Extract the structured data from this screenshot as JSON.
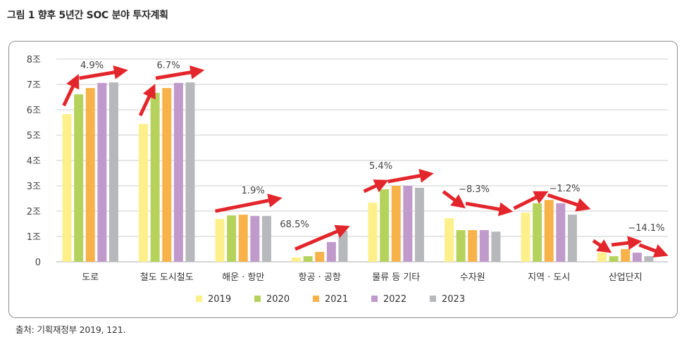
{
  "figure": {
    "title": "그림 1  향후 5년간 SOC 분야 투자계획",
    "source": "출처: 기획재정부 2019, 121."
  },
  "chart_data": {
    "type": "bar",
    "title": "향후 5년간 SOC 분야 투자계획",
    "xlabel": "",
    "ylabel": "",
    "ylim": [
      0,
      8
    ],
    "yticks": [
      {
        "value": 0,
        "label": "0"
      },
      {
        "value": 1,
        "label": "1조"
      },
      {
        "value": 2,
        "label": "2조"
      },
      {
        "value": 3,
        "label": "3조"
      },
      {
        "value": 4,
        "label": "4조"
      },
      {
        "value": 5,
        "label": "5조"
      },
      {
        "value": 6,
        "label": "6조"
      },
      {
        "value": 7,
        "label": "7조"
      },
      {
        "value": 8,
        "label": "8조"
      }
    ],
    "grid": true,
    "legend_position": "bottom",
    "categories": [
      "도로",
      "철도 도시철도",
      "해운 · 항만",
      "항공 · 공항",
      "물류 등 기타",
      "수자원",
      "지역 · 도시",
      "산업단지"
    ],
    "series": [
      {
        "name": "2019",
        "color": "#FDF08A",
        "values": [
          5.83,
          5.44,
          1.69,
          0.17,
          2.33,
          1.72,
          1.94,
          0.36
        ]
      },
      {
        "name": "2020",
        "color": "#B5D35C",
        "values": [
          6.61,
          6.67,
          1.83,
          0.22,
          2.86,
          1.25,
          2.31,
          0.22
        ]
      },
      {
        "name": "2021",
        "color": "#F8B24A",
        "values": [
          6.86,
          6.86,
          1.86,
          0.39,
          3.0,
          1.25,
          2.44,
          0.5
        ]
      },
      {
        "name": "2022",
        "color": "#C09ACB",
        "values": [
          7.06,
          7.06,
          1.81,
          0.78,
          3.0,
          1.25,
          2.31,
          0.36
        ]
      },
      {
        "name": "2023",
        "color": "#B7B8BC",
        "values": [
          7.08,
          7.08,
          1.81,
          1.22,
          2.92,
          1.19,
          1.86,
          0.22
        ]
      }
    ],
    "annotations": [
      {
        "category": "도로",
        "label": "4.9%",
        "trend": "up"
      },
      {
        "category": "철도 도시철도",
        "label": "6.7%",
        "trend": "up"
      },
      {
        "category": "해운 · 항만",
        "label": "1.9%",
        "trend": "up"
      },
      {
        "category": "항공 · 공항",
        "label": "68.5%",
        "trend": "up"
      },
      {
        "category": "물류 등 기타",
        "label": "5.4%",
        "trend": "up"
      },
      {
        "category": "수자원",
        "label": "−8.3%",
        "trend": "down"
      },
      {
        "category": "지역 · 도시",
        "label": "−1.2%",
        "trend": "up-down"
      },
      {
        "category": "산업단지",
        "label": "−14.1%",
        "trend": "down-up-down"
      }
    ],
    "arrow_color": "#E3262B"
  }
}
